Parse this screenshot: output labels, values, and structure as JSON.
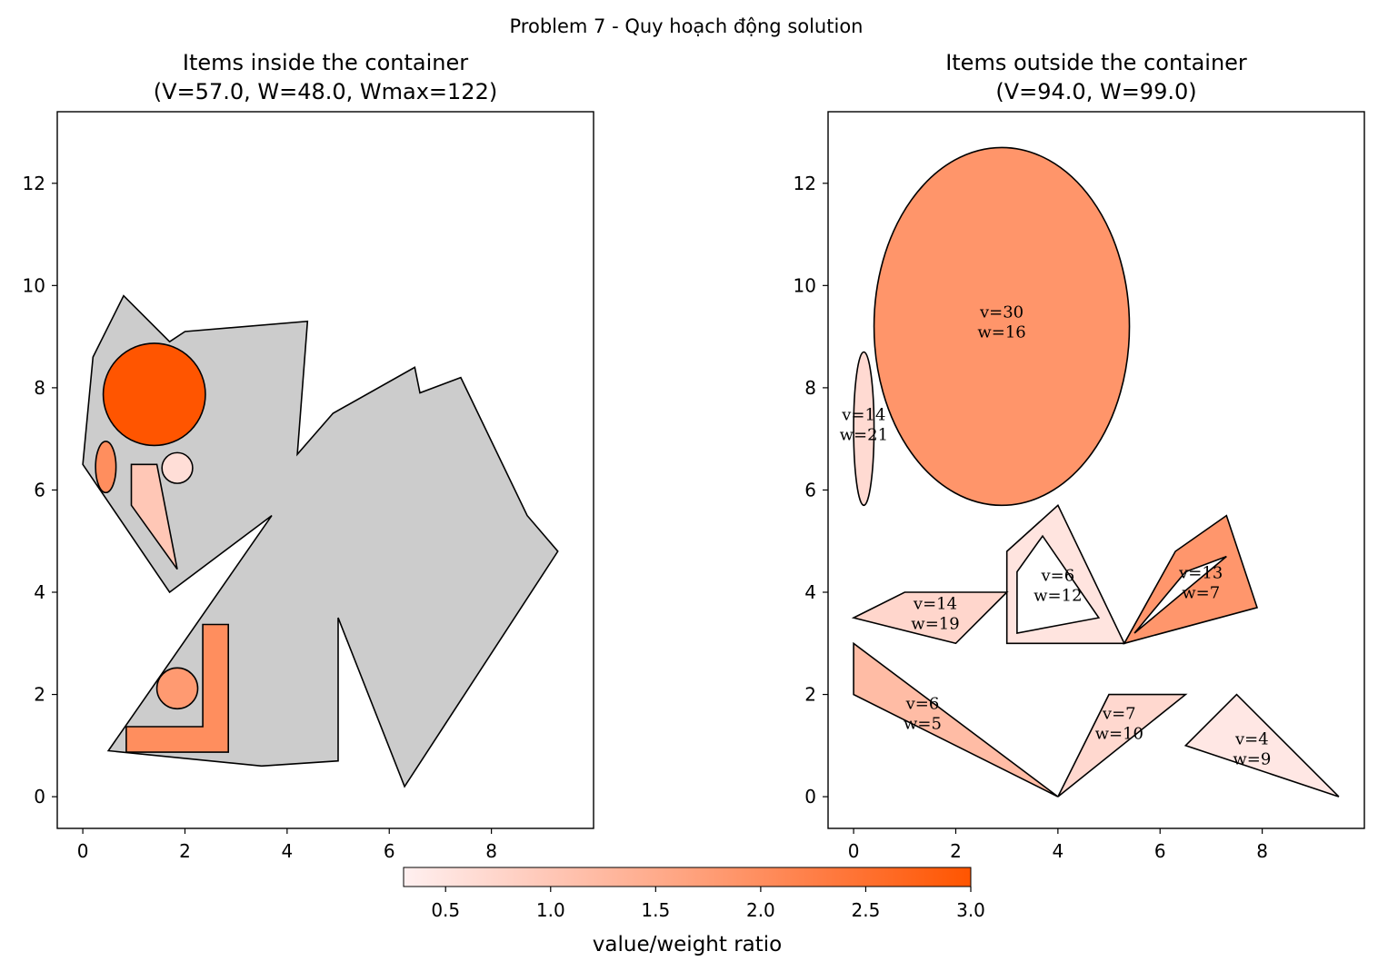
{
  "suptitle": "Problem 7 - Quy hoạch động solution",
  "colors": {
    "container": "#cccccc",
    "edge": "#000000",
    "cmap_low": "#fff0f0",
    "cmap_mid": "#ffaa88",
    "cmap_high": "#ff5500"
  },
  "chart_data": [
    {
      "type": "shapes",
      "title_line1": "Items inside the container",
      "title_line2": "(V=57.0, W=48.0, Wmax=122)",
      "xlim": [
        -0.5,
        10.0
      ],
      "ylim": [
        -0.62,
        13.4
      ],
      "xticks": [
        "0",
        "2",
        "4",
        "6",
        "8"
      ],
      "yticks": [
        "0",
        "2",
        "4",
        "6",
        "8",
        "10",
        "12"
      ],
      "container": [
        [
          0,
          6.5
        ],
        [
          0.2,
          8.6
        ],
        [
          0.8,
          9.8
        ],
        [
          1.7,
          8.9
        ],
        [
          2.0,
          9.1
        ],
        [
          4.4,
          9.3
        ],
        [
          4.2,
          6.7
        ],
        [
          4.9,
          7.5
        ],
        [
          6.5,
          8.4
        ],
        [
          6.6,
          7.9
        ],
        [
          7.4,
          8.2
        ],
        [
          8.7,
          5.5
        ],
        [
          9.3,
          4.8
        ],
        [
          6.3,
          0.2
        ],
        [
          5.0,
          3.5
        ],
        [
          5.0,
          0.7
        ],
        [
          3.5,
          0.6
        ],
        [
          0.5,
          0.9
        ],
        [
          3.7,
          5.5
        ],
        [
          1.7,
          4.0
        ]
      ],
      "items": [
        {
          "kind": "circle",
          "cx": 1.4,
          "cy": 7.87,
          "r": 1.0,
          "ratio": 3.0
        },
        {
          "kind": "ellipse",
          "cx": 0.45,
          "cy": 6.45,
          "rx": 0.2,
          "ry": 0.5,
          "ratio": 2.0
        },
        {
          "kind": "circle",
          "cx": 1.85,
          "cy": 6.43,
          "r": 0.3,
          "ratio": 0.6
        },
        {
          "kind": "polygon",
          "points": [
            [
              0.95,
              6.5
            ],
            [
              1.45,
              6.5
            ],
            [
              1.85,
              4.45
            ],
            [
              0.95,
              5.7
            ]
          ],
          "ratio": 1.0
        },
        {
          "kind": "polygon",
          "points": [
            [
              0.85,
              0.87
            ],
            [
              2.85,
              0.87
            ],
            [
              2.85,
              3.37
            ],
            [
              2.35,
              3.37
            ],
            [
              2.35,
              1.37
            ],
            [
              0.85,
              1.37
            ]
          ],
          "ratio": 2.0
        },
        {
          "kind": "circle",
          "cx": 1.85,
          "cy": 2.12,
          "r": 0.4,
          "ratio": 1.8
        }
      ]
    },
    {
      "type": "shapes",
      "title_line1": "Items outside the container",
      "title_line2": "(V=94.0, W=99.0)",
      "xlim": [
        -0.5,
        10.0
      ],
      "ylim": [
        -0.62,
        13.4
      ],
      "xticks": [
        "0",
        "2",
        "4",
        "6",
        "8"
      ],
      "yticks": [
        "0",
        "2",
        "4",
        "6",
        "8",
        "10",
        "12"
      ],
      "items": [
        {
          "kind": "ellipse",
          "cx": 2.9,
          "cy": 9.2,
          "rx": 2.5,
          "ry": 3.5,
          "ratio": 1.875,
          "label_v": "v=30",
          "label_w": "w=16",
          "lx": 2.9,
          "ly": 9.3
        },
        {
          "kind": "ellipse",
          "cx": 0.2,
          "cy": 7.2,
          "rx": 0.2,
          "ry": 1.5,
          "ratio": 0.667,
          "label_v": "v=14",
          "label_w": "w=21",
          "lx": 0.2,
          "ly": 7.3
        },
        {
          "kind": "polygon",
          "points": [
            [
              3.0,
              4.8
            ],
            [
              3.0,
              3.0
            ],
            [
              5.3,
              3.0
            ],
            [
              4.0,
              5.7
            ]
          ],
          "hole": [
            [
              3.2,
              4.4
            ],
            [
              3.2,
              3.2
            ],
            [
              4.8,
              3.5
            ],
            [
              3.7,
              5.1
            ]
          ],
          "ratio": 0.5,
          "label_v": "v=6",
          "label_w": "w=12",
          "lx": 4.0,
          "ly": 4.15
        },
        {
          "kind": "polygon",
          "points": [
            [
              0,
              3.5
            ],
            [
              1.0,
              4.0
            ],
            [
              3.0,
              4.0
            ],
            [
              2.0,
              3.0
            ]
          ],
          "ratio": 0.737,
          "label_v": "v=14",
          "label_w": "w=19",
          "lx": 1.6,
          "ly": 3.6
        },
        {
          "kind": "polygon",
          "points": [
            [
              5.3,
              3.0
            ],
            [
              6.3,
              4.8
            ],
            [
              7.3,
              5.5
            ],
            [
              7.9,
              3.7
            ]
          ],
          "hole": [
            [
              5.5,
              3.2
            ],
            [
              6.5,
              4.4
            ],
            [
              7.3,
              4.7
            ]
          ],
          "ratio": 1.857,
          "label_v": "v=13",
          "label_w": "w=7",
          "lx": 6.8,
          "ly": 4.2
        },
        {
          "kind": "polygon",
          "points": [
            [
              0,
              3.0
            ],
            [
              0,
              2.0
            ],
            [
              4.0,
              0.0
            ]
          ],
          "ratio": 1.2,
          "label_v": "v=6",
          "label_w": "w=5",
          "lx": 1.35,
          "ly": 1.65
        },
        {
          "kind": "polygon",
          "points": [
            [
              4.0,
              0.0
            ],
            [
              5.0,
              2.0
            ],
            [
              6.5,
              2.0
            ]
          ],
          "ratio": 0.7,
          "label_v": "v=7",
          "label_w": "w=10",
          "lx": 5.2,
          "ly": 1.45
        },
        {
          "kind": "polygon",
          "points": [
            [
              6.5,
              1.0
            ],
            [
              7.5,
              2.0
            ],
            [
              9.5,
              0.0
            ]
          ],
          "ratio": 0.444,
          "label_v": "v=4",
          "label_w": "w=9",
          "lx": 7.8,
          "ly": 0.95
        }
      ]
    }
  ],
  "colorbar": {
    "vmin": 0.3,
    "vmax": 3.0,
    "ticks": [
      0.5,
      1.0,
      1.5,
      2.0,
      2.5,
      3.0
    ],
    "tick_labels": [
      "0.5",
      "1.0",
      "1.5",
      "2.0",
      "2.5",
      "3.0"
    ],
    "label": "value/weight ratio"
  }
}
